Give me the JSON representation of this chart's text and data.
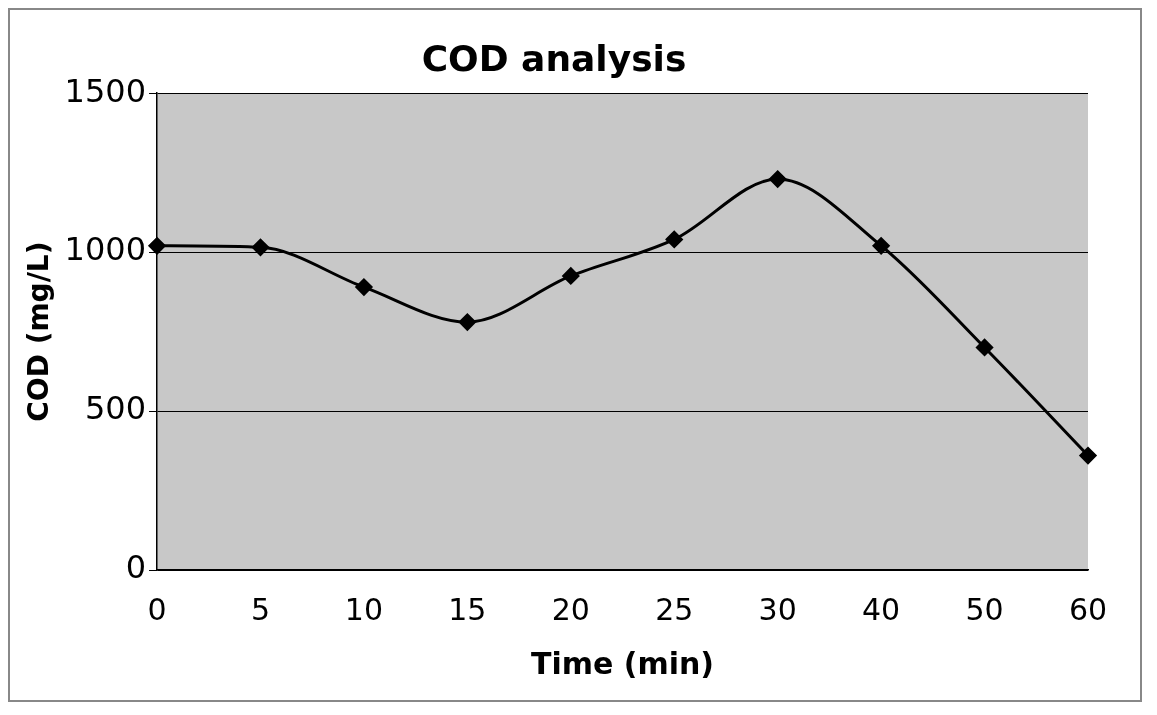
{
  "chart_data": {
    "type": "line",
    "title": "COD analysis",
    "xlabel": "Time (min)",
    "ylabel": "COD (mg/L)",
    "categories": [
      "0",
      "5",
      "10",
      "15",
      "20",
      "25",
      "30",
      "40",
      "50",
      "60"
    ],
    "series": [
      {
        "color": "#000000",
        "values": [
          1020,
          1015,
          890,
          780,
          925,
          1040,
          1230,
          1020,
          700,
          360
        ]
      }
    ],
    "ylim": [
      0,
      1500
    ],
    "yticks": [
      0,
      500,
      1000,
      1500
    ],
    "grid": "y",
    "legend": false,
    "marker": "diamond",
    "line_style": "solid"
  }
}
